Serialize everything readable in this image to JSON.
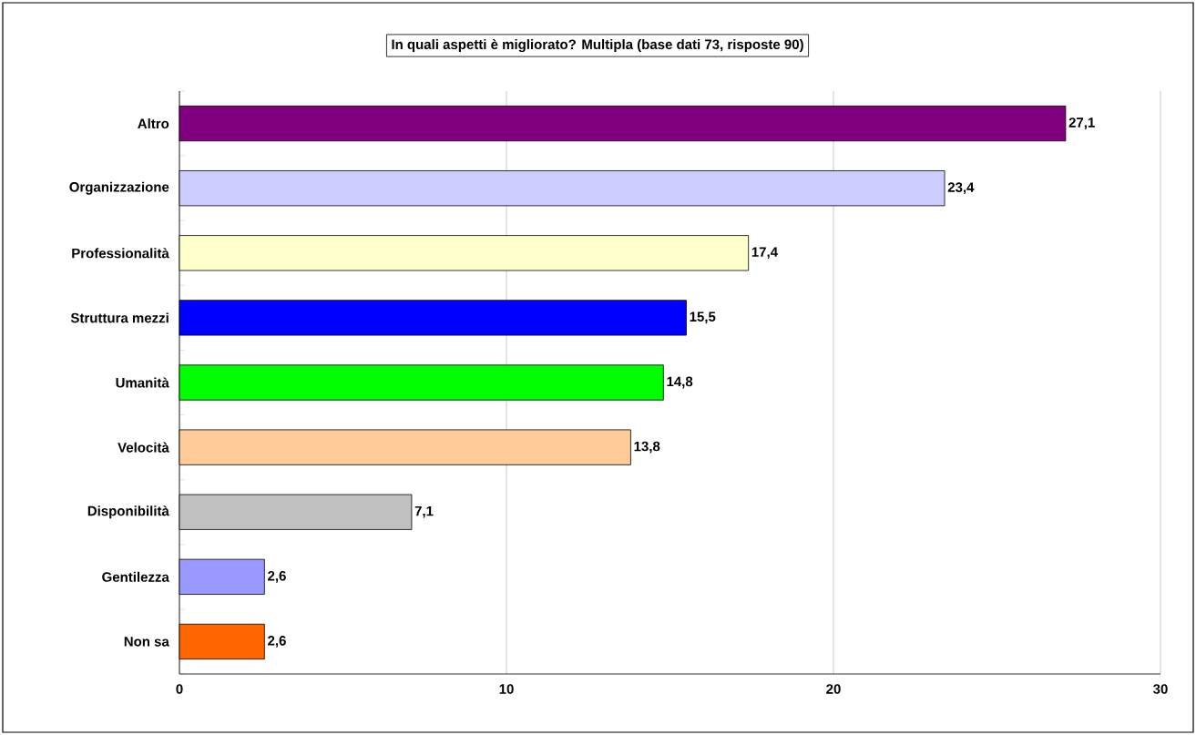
{
  "chart_data": {
    "type": "bar",
    "orientation": "horizontal",
    "title": "In quali aspetti è migliorato? Multipla (base dati 73, risposte 90)",
    "categories": [
      "Altro",
      "Organizzazione",
      "Professionalità",
      "Struttura mezzi",
      "Umanità",
      "Velocità",
      "Disponibilità",
      "Gentilezza",
      "Non sa"
    ],
    "values": [
      27.1,
      23.4,
      17.4,
      15.5,
      14.8,
      13.8,
      7.1,
      2.6,
      2.6
    ],
    "value_labels": [
      "27,1",
      "23,4",
      "17,4",
      "15,5",
      "14,8",
      "13,8",
      "7,1",
      "2,6",
      "2,6"
    ],
    "colors": [
      "#800080",
      "#ccccff",
      "#ffffcc",
      "#0000ff",
      "#00ff00",
      "#ffcc99",
      "#c0c0c0",
      "#9999ff",
      "#ff6600"
    ],
    "xlim": [
      0,
      30
    ],
    "xticks": [
      0,
      10,
      20,
      30
    ],
    "grid": "x"
  }
}
